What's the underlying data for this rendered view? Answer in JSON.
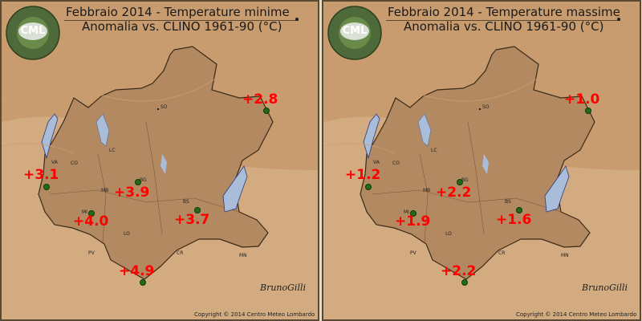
{
  "logo": {
    "text": "CML",
    "ring_text": "CENTRO METEO LOMBARDO"
  },
  "copyright": "Copyright © 2014 Centro Meteo Lombardo",
  "signature": "BrunoGilli",
  "colors": {
    "region_fill": "#b28960",
    "background": "#c89c6e",
    "lake": "#a9bcd8",
    "anomaly_text": "#ff0000",
    "station_dot": "#1f6b17"
  },
  "panels": [
    {
      "id": "minime",
      "title": "Febbraio 2014 - Temperature minime",
      "subtitle": "Anomalia vs. CLINO 1961-90 (°C)",
      "anomalies": [
        {
          "station": "SO",
          "value": "+2.8"
        },
        {
          "station": "VA",
          "value": "+3.1"
        },
        {
          "station": "BG",
          "value": "+3.9"
        },
        {
          "station": "MI",
          "value": "+4.0"
        },
        {
          "station": "BS",
          "value": "+3.7"
        },
        {
          "station": "PV",
          "value": "+4.9"
        }
      ]
    },
    {
      "id": "massime",
      "title": "Febbraio 2014 - Temperature massime",
      "subtitle": "Anomalia vs. CLINO 1961-90 (°C)",
      "anomalies": [
        {
          "station": "SO",
          "value": "+1.0"
        },
        {
          "station": "VA",
          "value": "+1.2"
        },
        {
          "station": "BG",
          "value": "+2.2"
        },
        {
          "station": "MI",
          "value": "+1.9"
        },
        {
          "station": "BS",
          "value": "+1.6"
        },
        {
          "station": "PV",
          "value": "+2.2"
        }
      ]
    }
  ],
  "cities": [
    "SO",
    "VA",
    "CO",
    "LC",
    "BG",
    "MB",
    "MI",
    "BS",
    "LO",
    "PV",
    "CR",
    "MN"
  ]
}
